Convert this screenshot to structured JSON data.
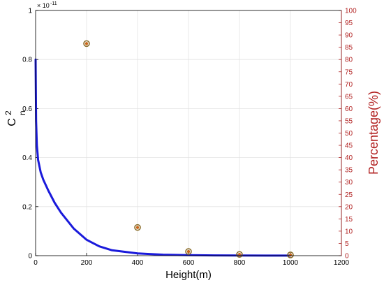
{
  "chart_data": {
    "type": "line",
    "xlabel": "Height(m)",
    "ylabel_main": "C",
    "ylabel_sup": "2",
    "ylabel_sub": "n",
    "y_exponent_base": "× 10",
    "y_exponent": "-11",
    "y2label": "Percentage(%)",
    "xlim": [
      0,
      1200
    ],
    "ylim": [
      0,
      1
    ],
    "y2lim": [
      0,
      100
    ],
    "grid": true,
    "xticks": [
      "0",
      "200",
      "400",
      "600",
      "800",
      "1000",
      "1200"
    ],
    "yticks": [
      "0",
      "0.2",
      "0.4",
      "0.6",
      "0.8",
      "1"
    ],
    "y2ticks": [
      "0",
      "5",
      "10",
      "15",
      "20",
      "25",
      "30",
      "35",
      "40",
      "45",
      "50",
      "55",
      "60",
      "65",
      "70",
      "75",
      "80",
      "85",
      "90",
      "95",
      "100"
    ],
    "series": [
      {
        "axis": "left",
        "style": "line",
        "color": "#1a1adb",
        "x": [
          0,
          2,
          5,
          10,
          20,
          30,
          50,
          75,
          100,
          150,
          200,
          250,
          300,
          400,
          500,
          600,
          700,
          800,
          900,
          1000
        ],
        "y": [
          0.8,
          0.55,
          0.45,
          0.39,
          0.34,
          0.31,
          0.265,
          0.215,
          0.175,
          0.11,
          0.065,
          0.038,
          0.022,
          0.009,
          0.004,
          0.002,
          0.001,
          0.0006,
          0.0004,
          0.0003
        ]
      },
      {
        "axis": "right",
        "style": "markers",
        "color": "#c8661a",
        "marker_edge": "#8a6d2a",
        "x": [
          200,
          400,
          600,
          800,
          1000
        ],
        "y": [
          86.5,
          11.5,
          1.7,
          0.5,
          0.3
        ]
      }
    ]
  }
}
